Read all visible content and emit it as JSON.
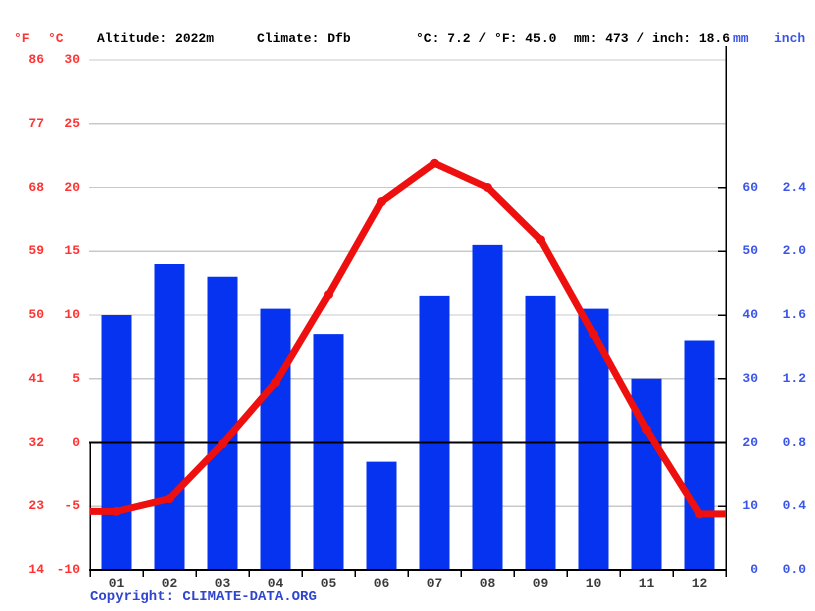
{
  "header": {
    "f_unit": "°F",
    "c_unit": "°C",
    "altitude": "Altitude: 2022m",
    "climate": "Climate: Dfb",
    "temp_summary": "°C: 7.2 / °F: 45.0",
    "precip_summary": "mm: 473 / inch: 18.6",
    "mm_unit": "mm",
    "inch_unit": "inch"
  },
  "axes": {
    "left_f_labels": [
      "86",
      "77",
      "68",
      "59",
      "50",
      "41",
      "32",
      "23",
      "14"
    ],
    "left_c_labels": [
      "30",
      "25",
      "20",
      "15",
      "10",
      "5",
      "0",
      "-5",
      "-10"
    ],
    "right_mm_labels": [
      "60",
      "50",
      "40",
      "30",
      "20",
      "10",
      "0"
    ],
    "right_inch_labels": [
      "2.4",
      "2.0",
      "1.6",
      "1.2",
      "0.8",
      "0.4",
      "0.0"
    ]
  },
  "chart_data": {
    "type": "bar+line",
    "categories": [
      "01",
      "02",
      "03",
      "04",
      "05",
      "06",
      "07",
      "08",
      "09",
      "10",
      "11",
      "12"
    ],
    "series": [
      {
        "name": "precipitation_mm",
        "type": "bar",
        "values": [
          40,
          48,
          46,
          41,
          37,
          17,
          43,
          51,
          43,
          41,
          30,
          36
        ]
      },
      {
        "name": "temperature_c",
        "type": "line",
        "values": [
          -5.4,
          -4.4,
          -0.1,
          4.7,
          11.6,
          18.9,
          21.9,
          20.0,
          15.9,
          8.5,
          1.0,
          -5.6
        ]
      }
    ],
    "temp_axis": {
      "min": -10,
      "max": 30,
      "step": 5,
      "unit": "°C"
    },
    "precip_axis": {
      "min": 0,
      "label_max": 60,
      "step": 10,
      "unit": "mm"
    },
    "annual_mean_c": 7.2,
    "annual_precip_mm": 473,
    "grid": true,
    "zero_line_c": 0
  },
  "colors": {
    "bar": "#0533f0",
    "line": "#ee0f0f",
    "grid": "#c8c8c8",
    "axis": "#000000",
    "temp_label": "#ff3333",
    "precip_label": "#3b55e6",
    "month_label": "#3c3c3c",
    "copyright": "#2f45cf"
  },
  "copyright": {
    "prefix": "Copyright: ",
    "link": "CLIMATE-DATA.ORG"
  }
}
